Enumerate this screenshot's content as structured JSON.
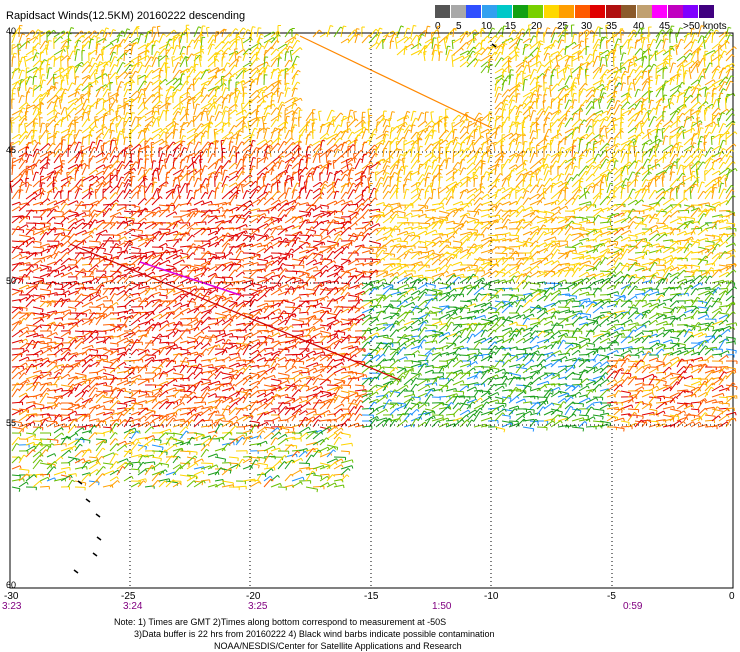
{
  "title": "Rapidsact Winds(12.5KM) 20160222 descending",
  "legend": {
    "labels": [
      "0",
      "5",
      "10",
      "15",
      "20",
      "25",
      "30",
      "35",
      "40",
      "45",
      ">50 knots"
    ],
    "colors": [
      "#555555",
      "#a8a8a8",
      "#2f4fff",
      "#32a0f0",
      "#00c8c8",
      "#12a012",
      "#78d000",
      "#ffd800",
      "#ff9e00",
      "#ff5a00",
      "#e00000",
      "#b01010",
      "#8b5a2b",
      "#c0a070",
      "#ff00ff",
      "#c000c0",
      "#8000ff",
      "#400080"
    ]
  },
  "x_ticks": [
    "-30",
    "-25",
    "-20",
    "-15",
    "-10",
    "-5",
    "0"
  ],
  "y_ticks": [
    "40",
    "45",
    "50",
    "55",
    "60"
  ],
  "times": [
    "3:23",
    "3:24",
    "3:25",
    "1:50",
    "0:59"
  ],
  "notes": "Note: 1) Times are GMT 2)Times along bottom correspond to measurement at -50S\n        3)Data buffer is 22 hrs from 20160222 4) Black wind barbs indicate possible contamination\n                                        NOAA/NESDIS/Center for Satellite Applications and Research"
}
